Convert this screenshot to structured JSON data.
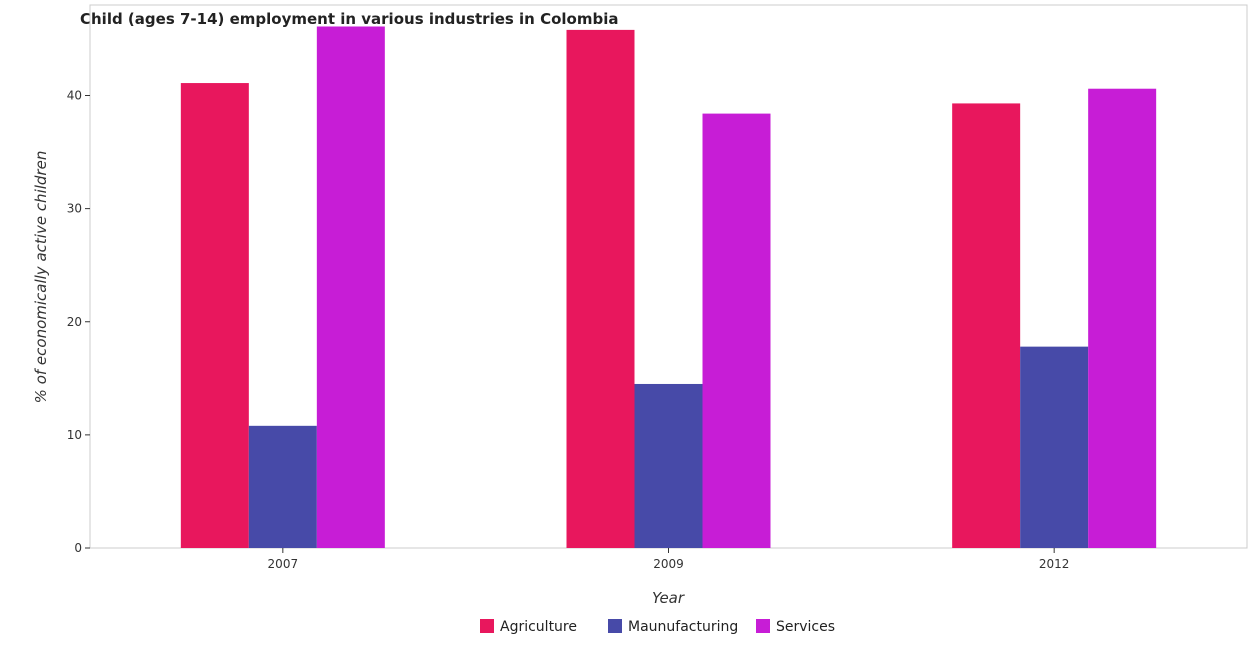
{
  "chart_data": {
    "type": "bar",
    "title": "Child (ages 7-14) employment in various industries in Colombia",
    "xlabel": "Year",
    "ylabel": "% of economically active children",
    "categories": [
      "2007",
      "2009",
      "2012"
    ],
    "ylim": [
      0,
      48
    ],
    "yticks": [
      0,
      10,
      20,
      30,
      40
    ],
    "grid": false,
    "legend_position": "bottom-center",
    "series": [
      {
        "name": "Agriculture",
        "color": "#e8175d",
        "values": [
          41.1,
          45.8,
          39.3
        ]
      },
      {
        "name": "Maunufacturing",
        "color": "#474aa8",
        "values": [
          10.8,
          14.5,
          17.8
        ]
      },
      {
        "name": "Services",
        "color": "#c71dd6",
        "values": [
          46.1,
          38.4,
          40.6
        ]
      }
    ]
  }
}
